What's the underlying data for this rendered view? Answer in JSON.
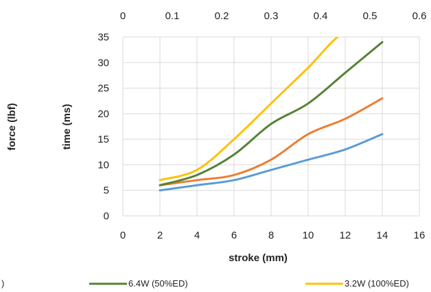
{
  "chart_data": {
    "type": "line",
    "xlabel": "stroke (mm)",
    "ylabel": "time (ms)",
    "ylabel_secondary": "force (lbf)",
    "x": [
      2,
      4,
      6,
      8,
      10,
      12,
      14
    ],
    "xlim": [
      0,
      16
    ],
    "xticks": [
      0,
      2,
      4,
      6,
      8,
      10,
      12,
      14,
      16
    ],
    "ylim": [
      0,
      35
    ],
    "yticks": [
      0,
      5,
      10,
      15,
      20,
      25,
      30,
      35
    ],
    "x2lim": [
      0,
      0.6
    ],
    "x2ticks": [
      0,
      0.1,
      0.2,
      0.3,
      0.4,
      0.5,
      0.6
    ],
    "grid": true,
    "legend": "bottom",
    "series": [
      {
        "values": [
          5,
          6,
          7,
          9,
          11,
          13,
          16
        ],
        "color": "#5b9bd5"
      },
      {
        "name": ")",
        "values": [
          6,
          7,
          8,
          11,
          16,
          19,
          23
        ],
        "color": "#ed7d31"
      },
      {
        "name": "6.4W (50%ED)",
        "values": [
          6,
          8,
          12,
          18,
          22,
          28,
          34
        ],
        "color": "#548235"
      },
      {
        "name": "3.2W (100%ED)",
        "values": [
          7,
          9,
          15,
          22,
          29,
          36,
          36
        ],
        "color": "#ffc000"
      }
    ]
  }
}
